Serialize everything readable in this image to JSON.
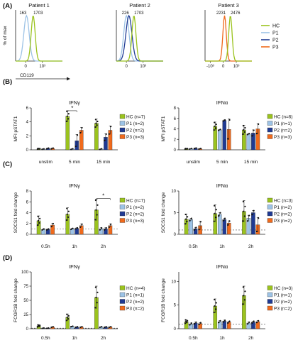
{
  "colors": {
    "HC": "#9bc31e",
    "P1": "#9dc3e6",
    "P2": "#1f3a93",
    "P3": "#f06a1c"
  },
  "chart_data": [
    {
      "id": "A",
      "type": "histogram",
      "panel_label": "(A)",
      "ylabel": "% of max",
      "xlabel": "CD119",
      "ticks": [
        {
          "v": 0,
          "t": "0"
        },
        {
          "v": 1,
          "t": "10³"
        }
      ],
      "xlim": [
        -0.6,
        2.2
      ],
      "legend": [
        {
          "key": "HC",
          "label": "HC"
        },
        {
          "key": "P1",
          "label": "P1"
        },
        {
          "key": "P2",
          "label": "P2"
        },
        {
          "key": "P3",
          "label": "P3"
        }
      ],
      "plots": [
        {
          "title": "Patient 1",
          "ann": [
            {
              "key": "P1",
              "mfi": "163"
            },
            {
              "key": "HC",
              "mfi": "1703"
            }
          ],
          "peaks": [
            {
              "key": "P1",
              "c": 0.05,
              "w": 0.16
            },
            {
              "key": "HC",
              "c": 0.45,
              "w": 0.12
            }
          ]
        },
        {
          "title": "Patient 2",
          "ann": [
            {
              "key": "P2",
              "mfi": "226"
            },
            {
              "key": "HC",
              "mfi": "1703"
            }
          ],
          "peaks": [
            {
              "key": "P1",
              "c": 0.0,
              "w": 0.16
            },
            {
              "key": "P2",
              "c": 0.15,
              "w": 0.18
            },
            {
              "key": "HC",
              "c": 0.45,
              "w": 0.12
            }
          ]
        },
        {
          "title": "Patient 3",
          "ticks": [
            {
              "v": -1,
              "t": "-10³"
            },
            {
              "v": 0,
              "t": "0"
            },
            {
              "v": 1,
              "t": "10³"
            }
          ],
          "xlim": [
            -1.4,
            2.2
          ],
          "ann": [
            {
              "key": "P3",
              "mfi": "2231"
            },
            {
              "key": "HC",
              "mfi": "2476"
            }
          ],
          "peaks": [
            {
              "key": "P3",
              "c": 0.1,
              "w": 0.13
            },
            {
              "key": "HC",
              "c": 0.55,
              "w": 0.13
            }
          ]
        }
      ]
    },
    {
      "id": "B",
      "type": "bar",
      "panel_label": "(B)",
      "ylabel": "MFI pSTAT1",
      "categories": [
        "unstim",
        "5 min",
        "15 min"
      ],
      "plots": [
        {
          "title": "IFNγ",
          "ylim": [
            0,
            6
          ],
          "legend": [
            {
              "key": "HC",
              "label": "HC (n=7)"
            },
            {
              "key": "P1",
              "label": "P1 (n=2)"
            },
            {
              "key": "P2",
              "label": "P2 (n=2)"
            },
            {
              "key": "P3",
              "label": "P3 (n=3)"
            }
          ],
          "series": [
            {
              "key": "HC",
              "values": [
                0.15,
                4.8,
                3.8
              ],
              "err": [
                0.05,
                0.8,
                0.6
              ]
            },
            {
              "key": "P1",
              "values": [
                0.1,
                0.1,
                0.1
              ],
              "err": [
                0.03,
                0.05,
                0.05
              ]
            },
            {
              "key": "P2",
              "values": [
                0.2,
                1.3,
                1.8
              ],
              "err": [
                0.05,
                0.9,
                0.5
              ]
            },
            {
              "key": "P3",
              "values": [
                0.2,
                2.8,
                2.8
              ],
              "err": [
                0.05,
                0.4,
                0.6
              ]
            }
          ],
          "sig": [
            {
              "from": 0,
              "to": 2,
              "cat": 1,
              "y": 5.6,
              "label": "*"
            }
          ]
        },
        {
          "title": "IFNα",
          "ylim": [
            0,
            8
          ],
          "legend": [
            {
              "key": "HC",
              "label": "HC (n=6)"
            },
            {
              "key": "P1",
              "label": "P1 (n=1)"
            },
            {
              "key": "P2",
              "label": "P2 (n=2)"
            },
            {
              "key": "P3",
              "label": "P3 (n=3)"
            }
          ],
          "series": [
            {
              "key": "HC",
              "values": [
                0.2,
                4.5,
                3.8
              ],
              "err": [
                0.05,
                0.8,
                0.9
              ]
            },
            {
              "key": "P1",
              "values": [
                0.2,
                3.8,
                3.0
              ],
              "err": [
                0.05,
                0.1,
                0.1
              ]
            },
            {
              "key": "P2",
              "values": [
                0.3,
                5.6,
                3.2
              ],
              "err": [
                0.05,
                0.1,
                0.6
              ]
            },
            {
              "key": "P3",
              "values": [
                0.2,
                3.9,
                4.0
              ],
              "err": [
                0.05,
                2.0,
                1.0
              ]
            }
          ]
        }
      ]
    },
    {
      "id": "C",
      "type": "bar",
      "panel_label": "(C)",
      "ylabel": "SOCS1 fold change",
      "categories": [
        "0.5h",
        "1h",
        "2h"
      ],
      "plots": [
        {
          "title": "IFNγ",
          "ylim": [
            0,
            8
          ],
          "baseline": 1,
          "legend": [
            {
              "key": "HC",
              "label": "HC (n=7)"
            },
            {
              "key": "P1",
              "label": "P1 (n=2)"
            },
            {
              "key": "P2",
              "label": "P2 (n=2)"
            },
            {
              "key": "P3",
              "label": "P3 (n=3)"
            }
          ],
          "series": [
            {
              "key": "HC",
              "values": [
                2.5,
                3.7,
                4.5
              ],
              "err": [
                0.9,
                1.2,
                2.0
              ]
            },
            {
              "key": "P1",
              "values": [
                0.9,
                1.0,
                1.0
              ],
              "err": [
                0.1,
                0.1,
                0.2
              ]
            },
            {
              "key": "P2",
              "values": [
                0.9,
                1.1,
                1.0
              ],
              "err": [
                0.1,
                0.1,
                0.2
              ]
            },
            {
              "key": "P3",
              "values": [
                1.7,
                1.6,
                1.6
              ],
              "err": [
                0.3,
                0.3,
                0.3
              ]
            }
          ],
          "sig": [
            {
              "from": 0,
              "to": 3,
              "cat": 2,
              "y": 6.6,
              "label": "*"
            }
          ]
        },
        {
          "title": "IFNα",
          "ylim": [
            0,
            10
          ],
          "baseline": 1,
          "legend": [
            {
              "key": "HC",
              "label": "HC (n=3)"
            },
            {
              "key": "P1",
              "label": "P1 (n=2)"
            },
            {
              "key": "P2",
              "label": "P2 (n=2)"
            },
            {
              "key": "P3",
              "label": "P3 (n=2)"
            }
          ],
          "series": [
            {
              "key": "HC",
              "values": [
                3.5,
                4.8,
                5.3
              ],
              "err": [
                1.2,
                2.0,
                2.5
              ]
            },
            {
              "key": "P1",
              "values": [
                3.4,
                4.6,
                3.7
              ],
              "err": [
                0.3,
                0.4,
                0.7
              ]
            },
            {
              "key": "P2",
              "values": [
                1.3,
                3.4,
                5.0
              ],
              "err": [
                0.3,
                0.3,
                0.5
              ]
            },
            {
              "key": "P3",
              "values": [
                2.0,
                2.6,
                2.2
              ],
              "err": [
                1.0,
                0.5,
                1.7
              ]
            }
          ]
        }
      ]
    },
    {
      "id": "D",
      "type": "bar",
      "panel_label": "(D)",
      "ylabel": "FCGR1B fold change",
      "categories": [
        "0.5h",
        "1h",
        "2h"
      ],
      "plots": [
        {
          "title": "IFNγ",
          "ylim": [
            0,
            100
          ],
          "baseline": 1,
          "legend": [
            {
              "key": "HC",
              "label": "HC (n=4)"
            },
            {
              "key": "P1",
              "label": "P1 (n=1)"
            },
            {
              "key": "P2",
              "label": "P2 (n=2)"
            },
            {
              "key": "P3",
              "label": "P3 (n=2)"
            }
          ],
          "series": [
            {
              "key": "HC",
              "values": [
                5,
                20,
                55
              ],
              "err": [
                2,
                6,
                20
              ]
            },
            {
              "key": "P1",
              "values": [
                1,
                4,
                3
              ],
              "err": [
                0.3,
                0.5,
                0.5
              ]
            },
            {
              "key": "P2",
              "values": [
                1,
                3,
                3
              ],
              "err": [
                0.3,
                0.5,
                0.5
              ]
            },
            {
              "key": "P3",
              "values": [
                3,
                3,
                3
              ],
              "err": [
                0.5,
                0.5,
                0.5
              ]
            }
          ]
        },
        {
          "title": "IFNα",
          "ylim": [
            0,
            12
          ],
          "baseline": 1,
          "legend": [
            {
              "key": "HC",
              "label": "HC (n=3)"
            },
            {
              "key": "P1",
              "label": "P1 (n=1)"
            },
            {
              "key": "P2",
              "label": "P2 (n=2)"
            },
            {
              "key": "P3",
              "label": "P3 (n=2)"
            }
          ],
          "series": [
            {
              "key": "HC",
              "values": [
                1.5,
                4.8,
                7.0
              ],
              "err": [
                0.4,
                1.5,
                2.0
              ]
            },
            {
              "key": "P1",
              "values": [
                1.0,
                1.5,
                1.2
              ],
              "err": [
                0.2,
                0.2,
                0.2
              ]
            },
            {
              "key": "P2",
              "values": [
                1.2,
                1.6,
                1.4
              ],
              "err": [
                0.2,
                0.2,
                0.2
              ]
            },
            {
              "key": "P3",
              "values": [
                1.1,
                1.4,
                1.5
              ],
              "err": [
                0.2,
                0.2,
                0.2
              ]
            }
          ]
        }
      ]
    }
  ]
}
